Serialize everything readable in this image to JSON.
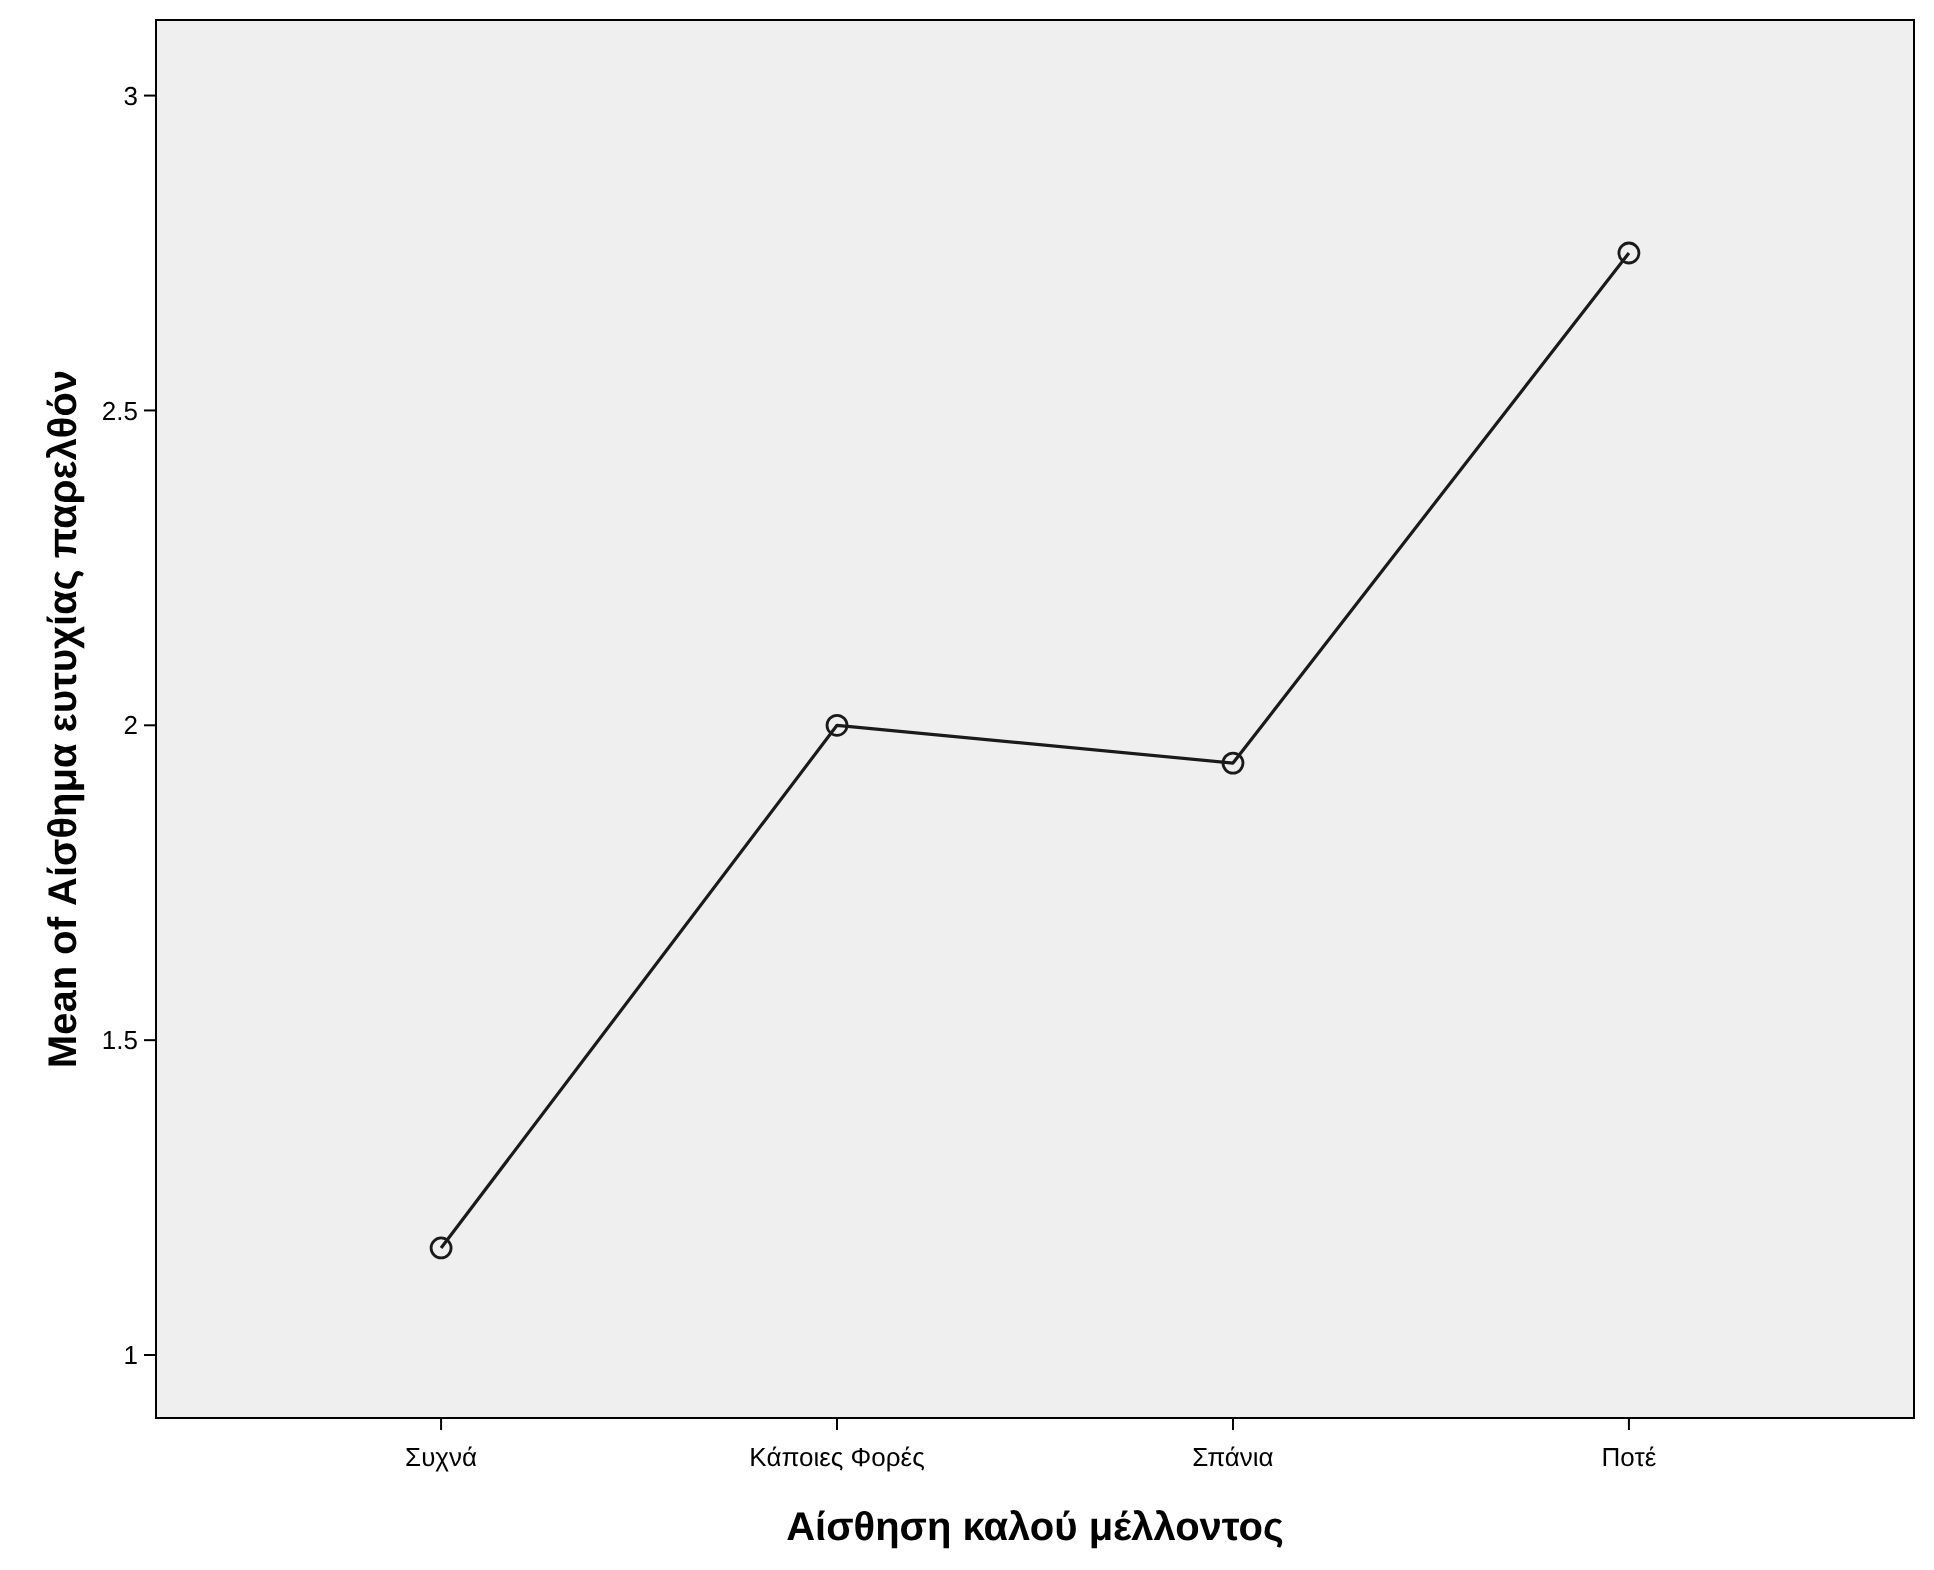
{
  "chart_data": {
    "type": "line",
    "xlabel": "Αίσθηση καλού μέλλοντος",
    "ylabel": "Mean of Αίσθημα ευτυχίας παρελθόν",
    "categories": [
      "Συχνά",
      "Κάποιες Φορές",
      "Σπάνια",
      "Ποτέ"
    ],
    "series": [
      {
        "color": "#1a1a1a",
        "values": [
          1.17,
          2.0,
          1.94,
          2.75
        ]
      }
    ],
    "ylim": [
      0.9,
      3.12
    ],
    "yticks": [
      1,
      1.5,
      2,
      2.5,
      3
    ],
    "marker": "circle",
    "line_style": "solid"
  }
}
